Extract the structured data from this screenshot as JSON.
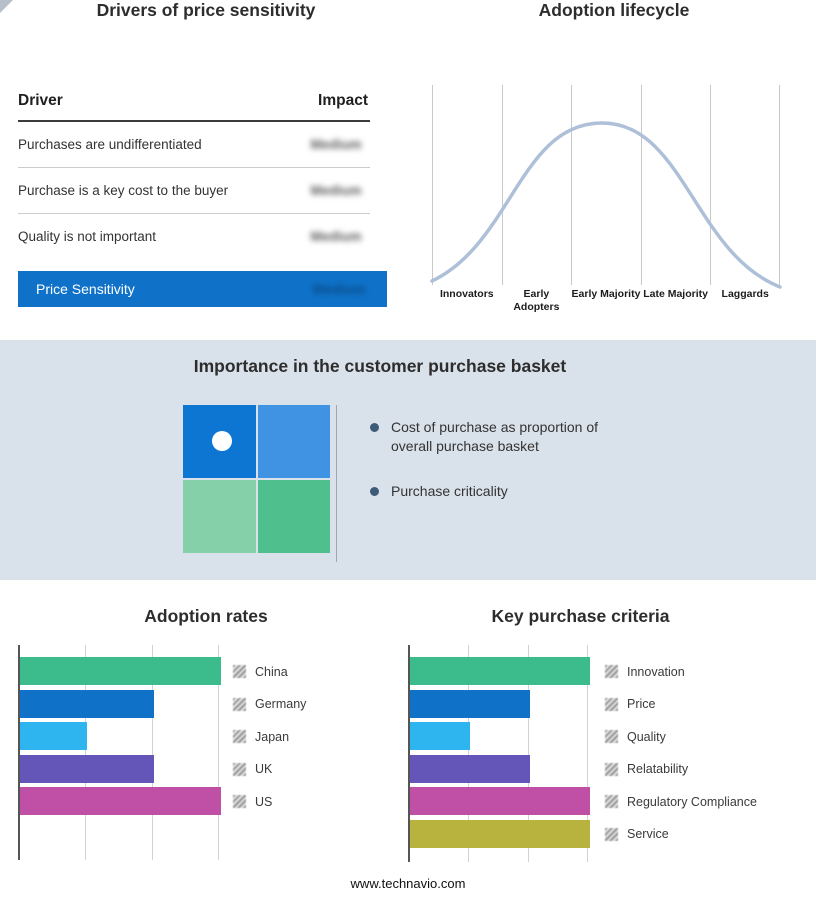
{
  "page": {
    "background": "#ffffff",
    "band_background": "#d9e1ea",
    "footer_url": "www.technavio.com"
  },
  "drivers": {
    "title": "Drivers of price sensitivity",
    "columns": {
      "driver": "Driver",
      "impact": "Impact"
    },
    "rows": [
      {
        "driver": "Purchases are undifferentiated",
        "impact": "Medium",
        "impact_redacted_blur": true
      },
      {
        "driver": "Purchase is a key cost to the buyer",
        "impact": "Medium",
        "impact_redacted_blur": true
      },
      {
        "driver": "Quality is not important",
        "impact": "Medium",
        "impact_redacted_blur": true
      }
    ],
    "summary": {
      "label": "Price Sensitivity",
      "impact": "Medium",
      "impact_redacted_blur": true,
      "row_color": "#0f72c8"
    }
  },
  "basket": {
    "title": "Importance in the customer purchase basket",
    "quadrant_colors": [
      "#0d76d2",
      "#3f93e2",
      "#85d0a8",
      "#4fc08d"
    ],
    "bullets": [
      "Cost of purchase as proportion of overall purchase basket",
      "Purchase criticality"
    ]
  },
  "chart_data": [
    {
      "type": "line",
      "title": "Adoption lifecycle",
      "categories": [
        "Innovators",
        "Early Adopters",
        "Early Majority",
        "Late Majority",
        "Laggards"
      ],
      "shape": "bell curve rising from Innovators, peaking over Early Majority, falling to Laggards",
      "curve_color": "#aebfd8",
      "gridlines": true,
      "axis_tick_labels_shown": false
    },
    {
      "type": "bar",
      "orientation": "horizontal",
      "title": "Adoption rates",
      "categories": [
        "China",
        "Germany",
        "Japan",
        "UK",
        "US"
      ],
      "values": [
        3,
        2,
        1,
        2,
        3
      ],
      "xlim": [
        0,
        3
      ],
      "colors": [
        "#3cbc8d",
        "#0f72c8",
        "#2eb5f0",
        "#6456b8",
        "#bf50a5"
      ],
      "legend_position": "right",
      "gridlines": true,
      "note": "no numeric axis labels shown; bar lengths estimated from unlabeled gridlines"
    },
    {
      "type": "bar",
      "orientation": "horizontal",
      "title": "Key purchase criteria",
      "categories": [
        "Innovation",
        "Price",
        "Quality",
        "Relatability",
        "Regulatory Compliance",
        "Service"
      ],
      "values": [
        3,
        2,
        1,
        2,
        3,
        3
      ],
      "xlim": [
        0,
        3
      ],
      "colors": [
        "#3cbc8d",
        "#0f72c8",
        "#2eb5f0",
        "#6456b8",
        "#bf50a5",
        "#b8b23e"
      ],
      "legend_position": "right",
      "gridlines": true,
      "note": "no numeric axis labels shown; bar lengths estimated from unlabeled gridlines"
    }
  ]
}
